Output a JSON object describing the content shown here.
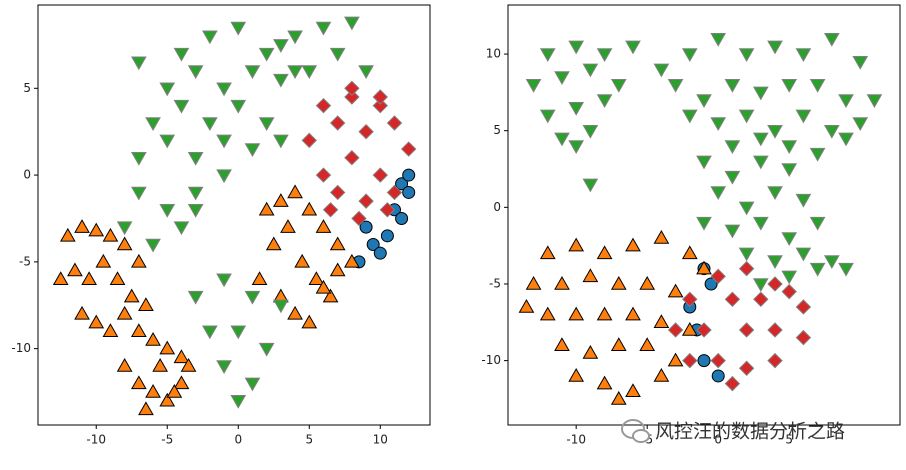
{
  "chart_data": [
    {
      "type": "scatter",
      "xlim": [
        -14.1,
        13.5
      ],
      "ylim": [
        -14.4,
        9.8
      ],
      "xticks": [
        -10,
        -5,
        0,
        5,
        10
      ],
      "yticks": [
        -10,
        -5,
        0,
        5
      ],
      "series": [
        {
          "marker": "o",
          "color": "#1f77b4",
          "edgecolor": "#000000",
          "x": [
            11.5,
            12,
            11,
            10.5,
            9.5,
            8.5,
            11.5,
            10,
            9,
            12
          ],
          "values": [
            -0.5,
            -1,
            -2,
            -3.5,
            -4,
            -5,
            -2.5,
            -4.5,
            -3,
            0
          ]
        },
        {
          "marker": "^",
          "color": "#ff7f0e",
          "edgecolor": "#000000",
          "x": [
            -12,
            -11,
            -10,
            -9,
            -8,
            -7,
            -12.5,
            -11.5,
            -10.5,
            -9.5,
            -8.5,
            -7.5,
            -6.5,
            -11,
            -10,
            -9,
            -8,
            -7,
            -6,
            -5,
            -4,
            -8,
            -7,
            -6,
            -5,
            -4,
            -3.5,
            -6.5,
            -5.5,
            -4.5,
            2,
            3,
            4,
            5,
            6,
            7,
            8,
            2.5,
            3.5,
            4.5,
            5.5,
            6.5,
            1.5,
            3,
            4,
            5,
            6,
            7
          ],
          "values": [
            -3.5,
            -3,
            -3.2,
            -3.5,
            -4,
            -5,
            -6,
            -5.5,
            -6,
            -5,
            -6,
            -7,
            -7.5,
            -8,
            -8.5,
            -9,
            -8,
            -9,
            -9.5,
            -10,
            -10.5,
            -11,
            -12,
            -12.5,
            -13,
            -12,
            -11,
            -13.5,
            -11,
            -12.5,
            -2,
            -1.5,
            -1,
            -2,
            -3,
            -4,
            -5,
            -4,
            -3,
            -5,
            -6,
            -7,
            -6,
            -7,
            -8,
            -8.5,
            -6.5,
            -5.5
          ]
        },
        {
          "marker": "v",
          "color": "#2ca02c",
          "edgecolor": "#808080",
          "x": [
            -4,
            -2,
            0,
            2,
            4,
            -5,
            -3,
            -1,
            1,
            3,
            -6,
            -4,
            -2,
            0,
            2,
            -7,
            -5,
            -3,
            -1,
            1,
            3,
            -7,
            -5,
            -3,
            -1,
            4,
            6,
            8,
            5,
            7,
            3,
            9,
            -8,
            -6,
            -4,
            -3,
            -3,
            -1,
            1,
            3,
            -2,
            0,
            2,
            -1,
            1,
            0,
            -7
          ],
          "values": [
            7,
            8,
            8.5,
            7,
            6,
            5,
            6,
            5,
            6,
            5.5,
            3,
            4,
            3,
            4,
            3,
            1,
            2,
            1,
            2,
            1.5,
            2,
            -1,
            -2,
            -1,
            0,
            8,
            8.5,
            8.8,
            6,
            7,
            7.5,
            6,
            -3,
            -4,
            -3,
            -2,
            -7,
            -6,
            -7,
            -7.5,
            -9,
            -9,
            -10,
            -11,
            -12,
            -13,
            6.5
          ]
        },
        {
          "marker": "D",
          "color": "#d62728",
          "edgecolor": "#808080",
          "x": [
            6,
            8,
            10,
            5,
            7,
            9,
            11,
            6,
            8,
            10,
            12,
            7,
            9,
            11,
            6.5,
            8.5,
            10.5,
            8,
            10
          ],
          "values": [
            4,
            4.5,
            4,
            2,
            3,
            2.5,
            3,
            0,
            1,
            0,
            1.5,
            -1,
            -1.5,
            -1,
            -2,
            -2.5,
            -2,
            5,
            4.5
          ]
        }
      ]
    },
    {
      "type": "scatter",
      "xlim": [
        -14.8,
        12.8
      ],
      "ylim": [
        -14.2,
        13.2
      ],
      "xticks": [
        -10,
        -5,
        0,
        5
      ],
      "yticks": [
        -10,
        -5,
        0,
        5,
        10
      ],
      "series": [
        {
          "marker": "o",
          "color": "#1f77b4",
          "edgecolor": "#000000",
          "x": [
            -1,
            -0.5,
            -2,
            -1.5,
            -1,
            0
          ],
          "values": [
            -4,
            -5,
            -6.5,
            -8,
            -10,
            -11
          ]
        },
        {
          "marker": "^",
          "color": "#ff7f0e",
          "edgecolor": "#000000",
          "x": [
            -12,
            -10,
            -8,
            -6,
            -4,
            -2,
            -13,
            -11,
            -9,
            -7,
            -5,
            -3,
            -1,
            -13.5,
            -12,
            -10,
            -8,
            -6,
            -4,
            -2,
            -11,
            -9,
            -7,
            -5,
            -3,
            -10,
            -8,
            -6,
            -4,
            -7
          ],
          "values": [
            -3,
            -2.5,
            -3,
            -2.5,
            -2,
            -3,
            -5,
            -5,
            -4.5,
            -5,
            -5,
            -5.5,
            -4,
            -6.5,
            -7,
            -7,
            -7,
            -7,
            -7.5,
            -8,
            -9,
            -9.5,
            -9,
            -9,
            -10,
            -11,
            -11.5,
            -12,
            -11,
            -12.5
          ]
        },
        {
          "marker": "v",
          "color": "#2ca02c",
          "edgecolor": "#808080",
          "x": [
            -12,
            -10,
            -8,
            -13,
            -11,
            -9,
            -7,
            -12,
            -10,
            -8,
            -11,
            -9,
            -10,
            -6,
            -9,
            -4,
            -2,
            0,
            2,
            4,
            6,
            8,
            10,
            -3,
            -1,
            1,
            3,
            5,
            7,
            9,
            11,
            -2,
            0,
            2,
            4,
            6,
            8,
            10,
            1,
            3,
            5,
            7,
            9,
            -1,
            1,
            3,
            5,
            0,
            2,
            4,
            6,
            -1,
            1,
            3,
            5,
            7,
            2,
            4,
            6,
            8,
            3,
            5,
            7,
            9
          ],
          "values": [
            10,
            10.5,
            10,
            8,
            8.5,
            9,
            8,
            6,
            6.5,
            7,
            4.5,
            5,
            4,
            10.5,
            1.5,
            9,
            10,
            11,
            10,
            10.5,
            10,
            11,
            9.5,
            8,
            7,
            8,
            7.5,
            8,
            8,
            7,
            7,
            6,
            5.5,
            6,
            5,
            6,
            5,
            5.5,
            4,
            4.5,
            4,
            3.5,
            4.5,
            3,
            2,
            3,
            2.5,
            1,
            0,
            1,
            0.5,
            -1,
            -1.5,
            -1,
            -2,
            -1,
            -3,
            -3.5,
            -3,
            -3.5,
            -5,
            -4.5,
            -4,
            -4
          ]
        },
        {
          "marker": "D",
          "color": "#d62728",
          "edgecolor": "#808080",
          "x": [
            0,
            2,
            4,
            -2,
            1,
            3,
            5,
            6,
            -3,
            -1,
            2,
            4,
            6,
            -2,
            0,
            2,
            4,
            1
          ],
          "values": [
            -4.5,
            -4,
            -5,
            -6,
            -6,
            -6,
            -5.5,
            -6.5,
            -8,
            -8,
            -8,
            -8,
            -8.5,
            -10,
            -10,
            -10.5,
            -10,
            -11.5
          ]
        }
      ]
    }
  ],
  "watermark": "风控汪的数据分析之路"
}
